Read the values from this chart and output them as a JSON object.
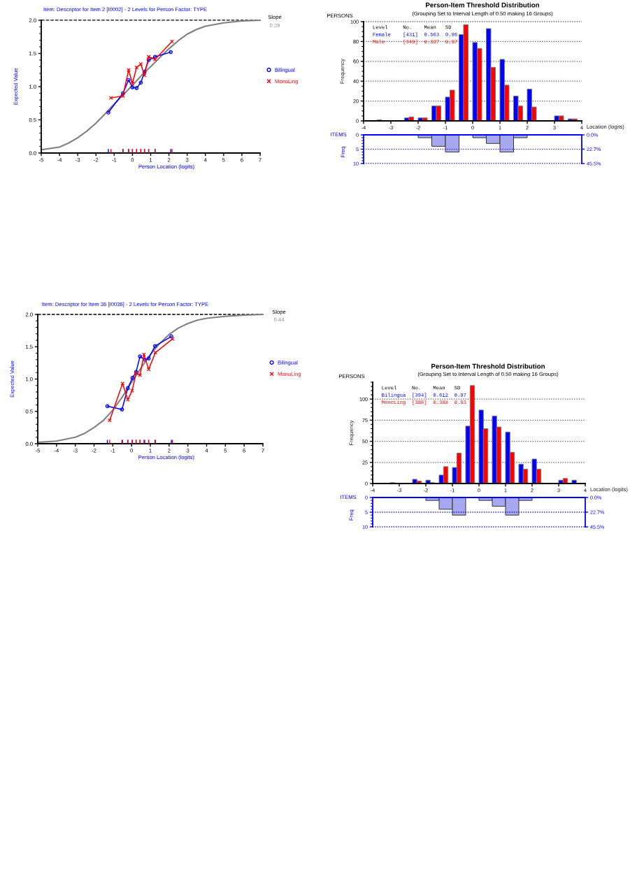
{
  "chart_data": [
    {
      "type": "line",
      "title": "Item: Descriptor for Item 2 [I0002] - 2 Levels for Person Factor: TYPE",
      "xlabel": "Person Location (logits)",
      "ylabel": "Expected Value",
      "annotations": [
        "Slope",
        "0.29"
      ],
      "legend": "right",
      "xlim": [
        -5,
        7
      ],
      "xticks": [
        -5,
        -4,
        -3,
        -2,
        -1,
        0,
        1,
        2,
        3,
        4,
        5,
        6,
        7
      ],
      "ylim": [
        0,
        2
      ],
      "yticks": [
        {
          "value": 0,
          "label": "0.0"
        },
        {
          "value": 0.5,
          "label": "0.5"
        },
        {
          "value": 1,
          "label": "1.0"
        },
        {
          "value": 1.5,
          "label": "1.5"
        },
        {
          "value": 2,
          "label": "2.0"
        }
      ],
      "ref_lines": [
        {
          "axis": "y",
          "value": 2,
          "color": "#000000",
          "line_style": "dashed"
        }
      ],
      "series": [
        {
          "color": "#808080",
          "marker": "none",
          "x": [
            -5,
            -4,
            -3.5,
            -3,
            -2.5,
            -2,
            -1.5,
            -1,
            -0.5,
            0,
            0.5,
            1,
            1.5,
            2,
            2.5,
            3,
            3.5,
            4,
            5,
            6,
            7
          ],
          "values": [
            0.05,
            0.09,
            0.15,
            0.23,
            0.33,
            0.45,
            0.59,
            0.74,
            0.88,
            1.02,
            1.17,
            1.3,
            1.44,
            1.57,
            1.69,
            1.79,
            1.86,
            1.91,
            1.96,
            1.99,
            2.0
          ]
        },
        {
          "name": "Bilingual",
          "color": "#0000ff",
          "marker": "circle",
          "x": [
            -1.32,
            -0.52,
            -0.21,
            0.0,
            0.23,
            0.46,
            0.66,
            0.89,
            1.24,
            2.1
          ],
          "values": [
            0.61,
            0.9,
            1.1,
            0.99,
            0.98,
            1.06,
            1.22,
            1.4,
            1.45,
            1.52
          ]
        },
        {
          "name": "MonoLing",
          "color": "#ff0000",
          "marker": "cross",
          "x": [
            -1.18,
            -0.52,
            -0.21,
            0.0,
            0.23,
            0.46,
            0.66,
            0.89,
            1.24,
            2.17
          ],
          "values": [
            0.83,
            0.86,
            1.25,
            1.05,
            1.29,
            1.34,
            1.17,
            1.45,
            1.41,
            1.68
          ]
        }
      ]
    },
    {
      "type": "bar",
      "title": "Person-Item Threshold Distribution",
      "subtitle": "(Grouping Set to Interval Length of 0.50 making 16 Groups)",
      "xlabel": "Location (logits)",
      "ylabel": "Frequency",
      "annotations": [
        "PERSONS"
      ],
      "legend": "top left",
      "legend_title": "Level     No.    Mean   SD",
      "x": [
        -3.75,
        -3.25,
        -2.75,
        -2.25,
        -1.75,
        -1.25,
        -0.75,
        -0.25,
        0.25,
        0.75,
        1.25,
        1.75,
        2.25,
        2.75,
        3.25,
        3.75
      ],
      "xlim": [
        -4,
        4
      ],
      "xticks": [
        -4,
        -3,
        -2,
        -1,
        0,
        1,
        2,
        3,
        4
      ],
      "ylim": [
        0,
        100
      ],
      "yticks": [
        0,
        20,
        40,
        60,
        80,
        100
      ],
      "grid": "y",
      "series": [
        {
          "name": "Female    [431]  0.563  0.96",
          "color": "#0000ff",
          "values": [
            0,
            1,
            0,
            3,
            3,
            15,
            24,
            87,
            79,
            93,
            62,
            25,
            32,
            0,
            5,
            2
          ]
        },
        {
          "name": "Male      [349]  0.327  0.97",
          "color": "#ff0000",
          "values": [
            0,
            0,
            0,
            4,
            3,
            15,
            31,
            97,
            73,
            54,
            36,
            15,
            14,
            0,
            5,
            2
          ]
        }
      ]
    },
    {
      "type": "bar",
      "ylabel": "Freq",
      "annotations": [
        "ITEMS"
      ],
      "x": [
        -3.75,
        -3.25,
        -2.75,
        -2.25,
        -1.75,
        -1.25,
        -0.75,
        -0.25,
        0.25,
        0.75,
        1.25,
        1.75,
        2.25,
        2.75,
        3.25,
        3.75
      ],
      "values": [
        0,
        0,
        0,
        0,
        1,
        4,
        6,
        0,
        1,
        3,
        6,
        1,
        0,
        0,
        0,
        0
      ],
      "color": "#a8a8f0",
      "xlim": [
        -4,
        4
      ],
      "ylim": [
        10,
        0
      ],
      "yticks": [
        0,
        5,
        10
      ],
      "y2lim": [
        45.5,
        0
      ],
      "y2ticks": [
        {
          "value": 0,
          "label": "0.0%"
        },
        {
          "value": 22.7,
          "label": "22.7%"
        },
        {
          "value": 45.5,
          "label": "45.5%"
        }
      ],
      "tick_labels": "y",
      "ref_lines": [
        {
          "axis": "y",
          "value": 5,
          "color": "#0000ff",
          "line_style": "dotted"
        },
        {
          "axis": "y",
          "value": 10,
          "color": "#0000ff",
          "line_style": "dotted"
        }
      ]
    },
    {
      "type": "line",
      "title": "Item: Descriptor for Item 36 [I0036] - 2 Levels for Person Factor: TYPE",
      "xlabel": "Person Location (logits)",
      "ylabel": "Expected Value",
      "annotations": [
        "Slope",
        "0.44"
      ],
      "legend": "right",
      "xlim": [
        -5,
        7
      ],
      "xticks": [
        -5,
        -4,
        -3,
        -2,
        -1,
        0,
        1,
        2,
        3,
        4,
        5,
        6,
        7
      ],
      "ylim": [
        0,
        2
      ],
      "yticks": [
        {
          "value": 0,
          "label": "0.0"
        },
        {
          "value": 0.5,
          "label": "0.5"
        },
        {
          "value": 1,
          "label": "1.0"
        },
        {
          "value": 1.5,
          "label": "1.5"
        },
        {
          "value": 2,
          "label": "2.0"
        }
      ],
      "ref_lines": [
        {
          "axis": "y",
          "value": 2,
          "color": "#000000",
          "line_style": "dashed"
        }
      ],
      "series": [
        {
          "color": "#808080",
          "marker": "none",
          "x": [
            -5,
            -4,
            -3,
            -2.5,
            -2,
            -1.5,
            -1,
            -0.5,
            0,
            0.5,
            1,
            1.5,
            2,
            2.5,
            3,
            3.5,
            4,
            5,
            6,
            7
          ],
          "values": [
            0.02,
            0.04,
            0.1,
            0.16,
            0.25,
            0.36,
            0.52,
            0.72,
            0.95,
            1.17,
            1.38,
            1.55,
            1.69,
            1.79,
            1.86,
            1.91,
            1.94,
            1.97,
            1.99,
            2.0
          ]
        },
        {
          "name": "Bilingual",
          "color": "#0000ff",
          "marker": "circle",
          "x": [
            -1.29,
            -0.51,
            -0.2,
            0.05,
            0.24,
            0.45,
            0.7,
            0.91,
            1.25,
            2.12
          ],
          "values": [
            0.58,
            0.53,
            0.86,
            1.02,
            1.11,
            1.35,
            1.3,
            1.32,
            1.51,
            1.66
          ]
        },
        {
          "name": "MonoLing",
          "color": "#ff0000",
          "marker": "cross",
          "x": [
            -1.17,
            -0.48,
            -0.2,
            0.03,
            0.24,
            0.45,
            0.66,
            0.91,
            1.27,
            2.18
          ],
          "values": [
            0.36,
            0.93,
            0.68,
            0.82,
            1.09,
            1.06,
            1.38,
            1.15,
            1.41,
            1.62
          ]
        }
      ]
    },
    {
      "type": "bar",
      "title": "Person-Item Threshold Distribution",
      "subtitle": "(Grouping Set to Interval Length of 0.50 making 16 Groups)",
      "xlabel": "Location (logits)",
      "ylabel": "Frequency",
      "annotations": [
        "PERSONS"
      ],
      "legend": "top left",
      "legend_title": "Level     No.    Mean   SD",
      "x": [
        -3.75,
        -3.25,
        -2.75,
        -2.25,
        -1.75,
        -1.25,
        -0.75,
        -0.25,
        0.25,
        0.75,
        1.25,
        1.75,
        2.25,
        2.75,
        3.25,
        3.75
      ],
      "xlim": [
        -4,
        4
      ],
      "xticks": [
        -4,
        -3,
        -2,
        -1,
        0,
        1,
        2,
        3,
        4
      ],
      "ylim": [
        0,
        120
      ],
      "yticks": [
        0,
        25,
        50,
        75,
        100
      ],
      "grid": "y",
      "series": [
        {
          "name": "Bilingua  [394]  0.612  0.97",
          "color": "#0000ff",
          "values": [
            0,
            0,
            0,
            5,
            4,
            10,
            19,
            68,
            87,
            80,
            61,
            23,
            29,
            0,
            4,
            4
          ]
        },
        {
          "name": "MonoLing  [386]  0.388  0.93",
          "color": "#ff0000",
          "values": [
            0,
            1,
            0,
            3,
            1,
            20,
            36,
            116,
            65,
            67,
            37,
            17,
            17,
            0,
            6,
            0
          ]
        }
      ]
    },
    {
      "type": "bar",
      "ylabel": "Freq",
      "annotations": [
        "ITEMS"
      ],
      "x": [
        -3.75,
        -3.25,
        -2.75,
        -2.25,
        -1.75,
        -1.25,
        -0.75,
        -0.25,
        0.25,
        0.75,
        1.25,
        1.75,
        2.25,
        2.75,
        3.25,
        3.75
      ],
      "values": [
        0,
        0,
        0,
        0,
        1,
        4,
        6,
        0,
        1,
        3,
        6,
        1,
        0,
        0,
        0,
        0
      ],
      "color": "#a8a8f0",
      "xlim": [
        -4,
        4
      ],
      "ylim": [
        10,
        0
      ],
      "yticks": [
        0,
        5,
        10
      ],
      "y2lim": [
        45.5,
        0
      ],
      "y2ticks": [
        {
          "value": 0,
          "label": "0.0%"
        },
        {
          "value": 22.7,
          "label": "22.7%"
        },
        {
          "value": 45.5,
          "label": "45.5%"
        }
      ],
      "tick_labels": "y",
      "ref_lines": [
        {
          "axis": "y",
          "value": 5,
          "color": "#0000ff",
          "line_style": "dotted"
        },
        {
          "axis": "y",
          "value": 10,
          "color": "#0000ff",
          "line_style": "dotted"
        }
      ]
    }
  ]
}
